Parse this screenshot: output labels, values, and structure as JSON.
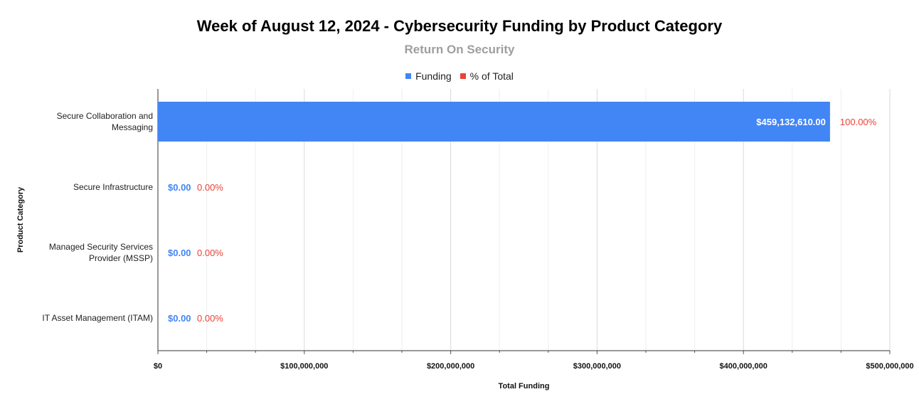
{
  "chart_data": {
    "type": "bar",
    "orientation": "horizontal",
    "title": "Week of August 12, 2024 - Cybersecurity Funding by Product Category",
    "subtitle": "Return On Security",
    "xlabel": "Total Funding",
    "ylabel": "Product Category",
    "xlim": [
      0,
      500000000
    ],
    "xticks": [
      "$0",
      "$100,000,000",
      "$200,000,000",
      "$300,000,000",
      "$400,000,000",
      "$500,000,000"
    ],
    "legend_position": "top",
    "grid": true,
    "categories": [
      [
        "Secure Collaboration and",
        "Messaging"
      ],
      [
        "Secure Infrastructure"
      ],
      [
        "Managed Security Services",
        "Provider (MSSP)"
      ],
      [
        "IT Asset Management (ITAM)"
      ]
    ],
    "series": [
      {
        "name": "Funding",
        "color": "#4285f4",
        "values": [
          459132610,
          0,
          0,
          0
        ],
        "labels": [
          "$459,132,610.00",
          "$0.00",
          "$0.00",
          "$0.00"
        ]
      },
      {
        "name": "% of Total",
        "color": "#ea4335",
        "values": [
          100,
          0,
          0,
          0
        ],
        "labels": [
          "100.00%",
          "0.00%",
          "0.00%",
          "0.00%"
        ]
      }
    ]
  }
}
